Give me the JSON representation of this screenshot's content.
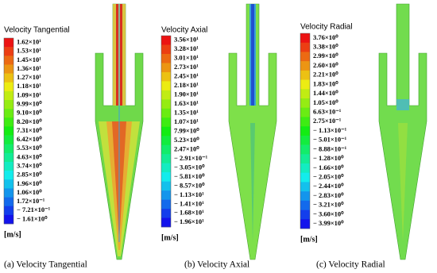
{
  "panels": [
    {
      "legend_title": "Velocity Tangential",
      "labels": [
        "1.62×10¹",
        "1.53×10¹",
        "1.45×10¹",
        "1.36×10¹",
        "1.27×10¹",
        "1.18×10¹",
        "1.09×10¹",
        "9.99×10⁰",
        "9.10×10⁰",
        "8.20×10⁰",
        "7.31×10⁰",
        "6.42×10⁰",
        "5.53×10⁰",
        "4.63×10⁰",
        "3.74×10⁰",
        "2.85×10⁰",
        "1.96×10⁰",
        "1.06×10⁰",
        "1.72×10⁻¹",
        "− 7.21×10⁻¹",
        "− 1.61×10⁰"
      ],
      "unit": "[m/s]",
      "caption": "(a) Velocity Tangential"
    },
    {
      "legend_title": "Velocity Axial",
      "labels": [
        "3.56×10¹",
        "3.28×10¹",
        "3.01×10¹",
        "2.73×10¹",
        "2.45×10¹",
        "2.18×10¹",
        "1.90×10¹",
        "1.63×10¹",
        "1.35×10¹",
        "1.07×10¹",
        "7.99×10⁰",
        "5.23×10⁰",
        "2.47×10⁰",
        "− 2.91×10⁻¹",
        "− 3.05×10⁰",
        "− 5.81×10⁰",
        "− 8.57×10⁰",
        "− 1.13×10¹",
        "− 1.41×10¹",
        "− 1.68×10¹",
        "− 1.96×10¹"
      ],
      "unit": "[m/s]",
      "caption": "(b) Velocity Axial"
    },
    {
      "legend_title": "Velocity Radial",
      "labels": [
        "3.76×10⁰",
        "3.38×10⁰",
        "2.99×10⁰",
        "2.60×10⁰",
        "2.21×10⁰",
        "1.83×10⁰",
        "1.44×10⁰",
        "1.05×10⁰",
        "6.63×10⁻¹",
        "2.75×10⁻¹",
        "− 1.13×10⁻¹",
        "− 5.01×10⁻¹",
        "− 8.88×10⁻¹",
        "− 1.28×10⁰",
        "− 1.66×10⁰",
        "− 2.05×10⁰",
        "− 2.44×10⁰",
        "− 2.83×10⁰",
        "− 3.21×10⁰",
        "− 3.60×10⁰",
        "− 3.99×10⁰"
      ],
      "unit": "[m/s]",
      "caption": "(c) Velocity Radial"
    }
  ]
}
